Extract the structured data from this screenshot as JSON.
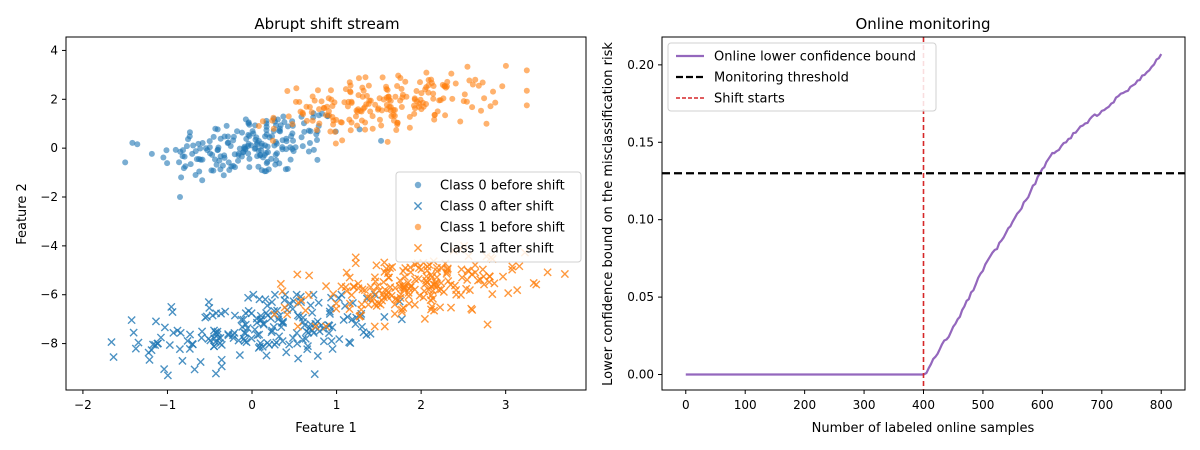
{
  "colors": {
    "class0": "#1f77b4",
    "class1": "#ff7f0e",
    "bound_line": "#9467bd",
    "threshold": "#000000",
    "shift_line": "#d62728"
  },
  "chart_data": [
    {
      "type": "scatter",
      "title": "Abrupt shift stream",
      "xlabel": "Feature 1",
      "ylabel": "Feature 2",
      "xlim": [
        -2.2,
        3.95
      ],
      "ylim": [
        -9.9,
        4.55
      ],
      "xticks": [
        -2,
        -1,
        0,
        1,
        2,
        3
      ],
      "yticks": [
        -8,
        -6,
        -4,
        -2,
        0,
        2,
        4
      ],
      "grid": false,
      "legend_position": "center-right",
      "series": [
        {
          "name": "Class 0 before shift",
          "marker": "circle",
          "color": "#1f77b4",
          "x_mean": 0.0,
          "x_sd": 0.55,
          "y_mean": 0.1,
          "y_sd": 0.7,
          "corr": 0.35,
          "count": 200,
          "x_range": [
            -1.5,
            1.6
          ],
          "y_range": [
            -2.0,
            2.0
          ]
        },
        {
          "name": "Class 0 after shift",
          "marker": "x",
          "color": "#1f77b4",
          "x_mean": 0.1,
          "x_sd": 0.7,
          "y_mean": -7.4,
          "y_sd": 0.75,
          "corr": 0.3,
          "count": 200,
          "x_range": [
            -1.95,
            2.5
          ],
          "y_range": [
            -9.3,
            -6.0
          ]
        },
        {
          "name": "Class 1 before shift",
          "marker": "circle",
          "color": "#ff7f0e",
          "x_mean": 1.6,
          "x_sd": 0.65,
          "y_mean": 1.8,
          "y_sd": 0.6,
          "corr": 0.35,
          "count": 200,
          "x_range": [
            -0.05,
            3.25
          ],
          "y_range": [
            0.0,
            3.8
          ]
        },
        {
          "name": "Class 1 after shift",
          "marker": "x",
          "color": "#ff7f0e",
          "x_mean": 1.9,
          "x_sd": 0.65,
          "y_mean": -5.7,
          "y_sd": 0.65,
          "corr": 0.35,
          "count": 200,
          "x_range": [
            0.1,
            3.7
          ],
          "y_range": [
            -7.3,
            -3.6
          ]
        }
      ]
    },
    {
      "type": "line",
      "title": "Online monitoring",
      "xlabel": "Number of labeled online samples",
      "ylabel": "Lower confidence bound on the misclassification risk",
      "xlim": [
        -40,
        840
      ],
      "ylim": [
        -0.01,
        0.218
      ],
      "xticks": [
        0,
        100,
        200,
        300,
        400,
        500,
        600,
        700,
        800
      ],
      "yticks": [
        0.0,
        0.05,
        0.1,
        0.15,
        0.2
      ],
      "ytick_labels": [
        "0.00",
        "0.05",
        "0.10",
        "0.15",
        "0.20"
      ],
      "grid": false,
      "legend_position": "top-left",
      "series": [
        {
          "name": "Online lower confidence bound",
          "color": "#9467bd",
          "x": [
            0,
            100,
            200,
            300,
            400,
            405,
            420,
            450,
            480,
            500,
            520,
            550,
            580,
            600,
            610,
            620,
            640,
            660,
            680,
            700,
            720,
            740,
            760,
            780,
            800
          ],
          "y": [
            0,
            0,
            0,
            0,
            0,
            0.001,
            0.012,
            0.03,
            0.052,
            0.068,
            0.08,
            0.098,
            0.118,
            0.132,
            0.14,
            0.143,
            0.15,
            0.158,
            0.165,
            0.17,
            0.177,
            0.183,
            0.19,
            0.197,
            0.207
          ]
        }
      ],
      "threshold": {
        "name": "Monitoring threshold",
        "value": 0.13,
        "color": "#000000",
        "style": "dashed"
      },
      "shift": {
        "name": "Shift starts",
        "value": 400,
        "color": "#d62728",
        "style": "dashed"
      }
    }
  ]
}
